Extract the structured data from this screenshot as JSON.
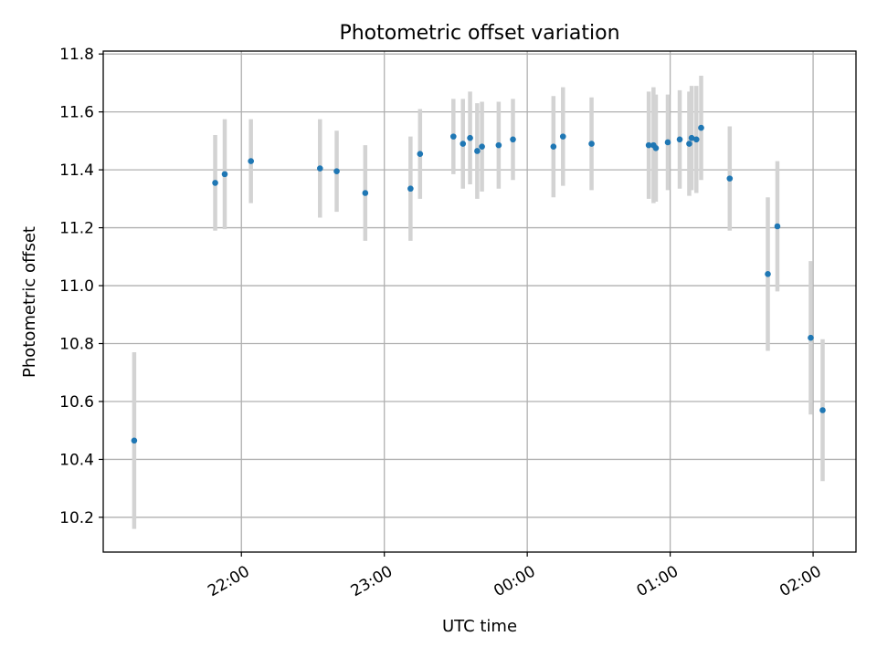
{
  "chart_data": {
    "type": "scatter",
    "title": "Photometric offset variation",
    "xlabel": "UTC time",
    "ylabel": "Photometric offset",
    "x_is_time": true,
    "x_range": [
      "21:02",
      "02:18"
    ],
    "ylim": [
      10.08,
      11.81
    ],
    "yticks": [
      10.2,
      10.4,
      10.6,
      10.8,
      11.0,
      11.2,
      11.4,
      11.6,
      11.8
    ],
    "xticks": [
      "22:00",
      "23:00",
      "00:00",
      "01:00",
      "02:00"
    ],
    "grid": true,
    "colors": {
      "point": "#1f77b4",
      "errorbar": "#d3d3d3",
      "grid": "#b0b0b0"
    },
    "points": [
      {
        "t": "21:15",
        "y": 10.465,
        "err": 0.305
      },
      {
        "t": "21:49",
        "y": 11.355,
        "err": 0.165
      },
      {
        "t": "21:53",
        "y": 11.385,
        "err": 0.19
      },
      {
        "t": "22:04",
        "y": 11.43,
        "err": 0.145
      },
      {
        "t": "22:33",
        "y": 11.405,
        "err": 0.17
      },
      {
        "t": "22:40",
        "y": 11.395,
        "err": 0.14
      },
      {
        "t": "22:52",
        "y": 11.32,
        "err": 0.165
      },
      {
        "t": "23:11",
        "y": 11.335,
        "err": 0.18
      },
      {
        "t": "23:15",
        "y": 11.455,
        "err": 0.155
      },
      {
        "t": "23:29",
        "y": 11.515,
        "err": 0.13
      },
      {
        "t": "23:33",
        "y": 11.49,
        "err": 0.155
      },
      {
        "t": "23:36",
        "y": 11.51,
        "err": 0.16
      },
      {
        "t": "23:39",
        "y": 11.465,
        "err": 0.165
      },
      {
        "t": "23:41",
        "y": 11.48,
        "err": 0.155
      },
      {
        "t": "23:48",
        "y": 11.485,
        "err": 0.15
      },
      {
        "t": "23:54",
        "y": 11.505,
        "err": 0.14
      },
      {
        "t": "00:11",
        "y": 11.48,
        "err": 0.175
      },
      {
        "t": "00:15",
        "y": 11.515,
        "err": 0.17
      },
      {
        "t": "00:27",
        "y": 11.49,
        "err": 0.16
      },
      {
        "t": "00:51",
        "y": 11.485,
        "err": 0.185
      },
      {
        "t": "00:53",
        "y": 11.485,
        "err": 0.2
      },
      {
        "t": "00:54",
        "y": 11.475,
        "err": 0.185
      },
      {
        "t": "00:59",
        "y": 11.495,
        "err": 0.165
      },
      {
        "t": "01:04",
        "y": 11.505,
        "err": 0.17
      },
      {
        "t": "01:08",
        "y": 11.49,
        "err": 0.18
      },
      {
        "t": "01:09",
        "y": 11.51,
        "err": 0.18
      },
      {
        "t": "01:11",
        "y": 11.505,
        "err": 0.185
      },
      {
        "t": "01:13",
        "y": 11.545,
        "err": 0.18
      },
      {
        "t": "01:25",
        "y": 11.37,
        "err": 0.18
      },
      {
        "t": "01:41",
        "y": 11.04,
        "err": 0.265
      },
      {
        "t": "01:45",
        "y": 11.205,
        "err": 0.225
      },
      {
        "t": "01:59",
        "y": 10.82,
        "err": 0.265
      },
      {
        "t": "02:04",
        "y": 10.57,
        "err": 0.245
      }
    ]
  }
}
